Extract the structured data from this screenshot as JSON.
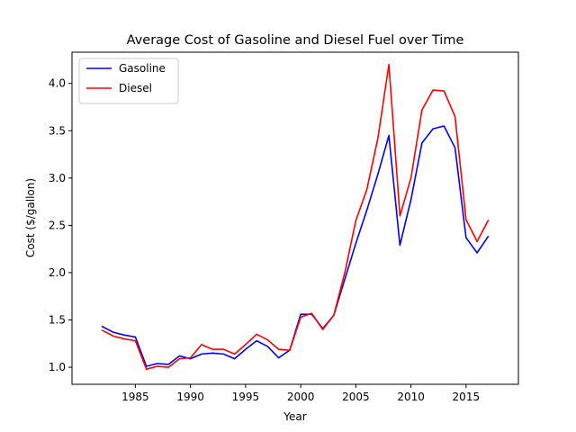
{
  "chart_data": {
    "type": "line",
    "title": "Average Cost of Gasoline and Diesel Fuel over Time",
    "xlabel": "Year",
    "ylabel": "Cost ($/gallon)",
    "xlim": [
      1979.25,
      2019.75
    ],
    "ylim": [
      0.82,
      4.33
    ],
    "xticks": [
      1985,
      1990,
      1995,
      2000,
      2005,
      2010,
      2015
    ],
    "yticks": [
      1.0,
      1.5,
      2.0,
      2.5,
      3.0,
      3.5,
      4.0
    ],
    "ytick_labels": [
      "1.0",
      "1.5",
      "2.0",
      "2.5",
      "3.0",
      "3.5",
      "4.0"
    ],
    "grid": false,
    "legend_position": "top-left",
    "x": [
      1982,
      1983,
      1984,
      1985,
      1986,
      1987,
      1988,
      1989,
      1990,
      1991,
      1992,
      1993,
      1994,
      1995,
      1996,
      1997,
      1998,
      1999,
      2000,
      2001,
      2002,
      2003,
      2004,
      2005,
      2006,
      2007,
      2008,
      2009,
      2010,
      2011,
      2012,
      2013,
      2014,
      2015,
      2016,
      2017
    ],
    "series": [
      {
        "name": "Gasoline",
        "color": "#0000ff",
        "values": [
          1.43,
          1.37,
          1.34,
          1.32,
          1.01,
          1.04,
          1.03,
          1.12,
          1.09,
          1.14,
          1.15,
          1.14,
          1.09,
          1.19,
          1.28,
          1.22,
          1.1,
          1.18,
          1.56,
          1.56,
          1.41,
          1.55,
          1.93,
          2.31,
          2.66,
          3.04,
          3.45,
          2.29,
          2.77,
          3.37,
          3.52,
          3.55,
          3.32,
          2.37,
          2.21,
          2.38
        ]
      },
      {
        "name": "Diesel",
        "color": "#ff0000",
        "values": [
          1.39,
          1.33,
          1.3,
          1.28,
          0.98,
          1.01,
          1.0,
          1.09,
          1.1,
          1.24,
          1.19,
          1.19,
          1.14,
          1.24,
          1.35,
          1.29,
          1.19,
          1.18,
          1.53,
          1.57,
          1.4,
          1.55,
          2.0,
          2.55,
          2.88,
          3.42,
          4.2,
          2.6,
          3.0,
          3.72,
          3.93,
          3.92,
          3.65,
          2.56,
          2.33,
          2.55
        ]
      }
    ]
  }
}
